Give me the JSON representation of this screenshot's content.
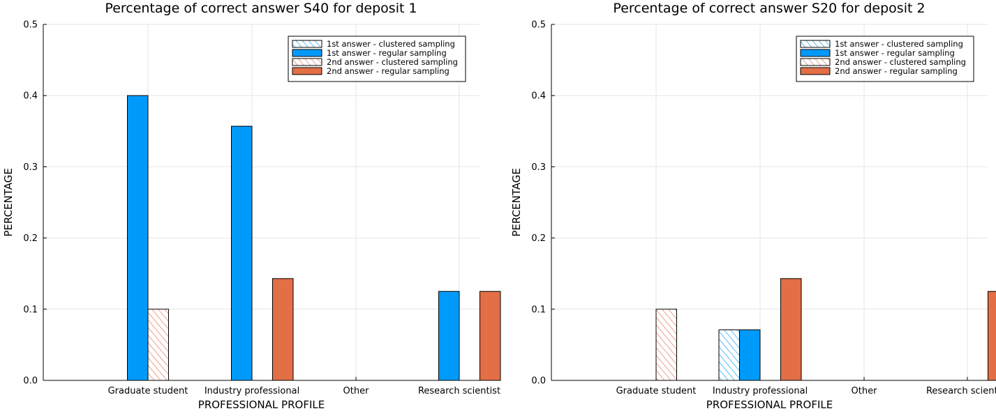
{
  "chart_data": [
    {
      "type": "bar",
      "title": "Percentage of correct answer S40 for deposit 1",
      "xlabel": "PROFESSIONAL PROFILE",
      "ylabel": "PERCENTAGE",
      "ylim": [
        0,
        0.5
      ],
      "yticks": [
        "0.0",
        "0.1",
        "0.2",
        "0.3",
        "0.4",
        "0.5"
      ],
      "grid": true,
      "legend_position": "top-right",
      "categories": [
        "Graduate student",
        "Industry professional",
        "Other",
        "Research scientist"
      ],
      "series": [
        {
          "name": "1st answer - clustered sampling",
          "values": [
            0,
            0,
            0,
            0
          ],
          "color": "#009AFA",
          "hatched": true
        },
        {
          "name": "1st answer - regular sampling",
          "values": [
            0.4,
            0.357,
            0,
            0.125
          ],
          "color": "#009AFA",
          "hatched": false
        },
        {
          "name": "2nd answer - clustered sampling",
          "values": [
            0.1,
            0,
            0,
            0
          ],
          "color": "#E26F46",
          "hatched": true
        },
        {
          "name": "2nd answer - regular sampling",
          "values": [
            0,
            0.143,
            0,
            0.125
          ],
          "color": "#E26F46",
          "hatched": false
        }
      ]
    },
    {
      "type": "bar",
      "title": "Percentage of correct answer S20 for deposit 2",
      "xlabel": "PROFESSIONAL PROFILE",
      "ylabel": "PERCENTAGE",
      "ylim": [
        0,
        0.5
      ],
      "yticks": [
        "0.0",
        "0.1",
        "0.2",
        "0.3",
        "0.4",
        "0.5"
      ],
      "grid": true,
      "legend_position": "top-right",
      "categories": [
        "Graduate student",
        "Industry professional",
        "Other",
        "Research scientist"
      ],
      "series": [
        {
          "name": "1st answer - clustered sampling",
          "values": [
            0,
            0.071,
            0,
            0
          ],
          "color": "#009AFA",
          "hatched": true
        },
        {
          "name": "1st answer - regular sampling",
          "values": [
            0,
            0.071,
            0,
            0
          ],
          "color": "#009AFA",
          "hatched": false
        },
        {
          "name": "2nd answer - clustered sampling",
          "values": [
            0.1,
            0,
            0,
            0
          ],
          "color": "#E26F46",
          "hatched": true
        },
        {
          "name": "2nd answer - regular sampling",
          "values": [
            0,
            0.143,
            0,
            0.125
          ],
          "color": "#E26F46",
          "hatched": false
        }
      ]
    }
  ]
}
